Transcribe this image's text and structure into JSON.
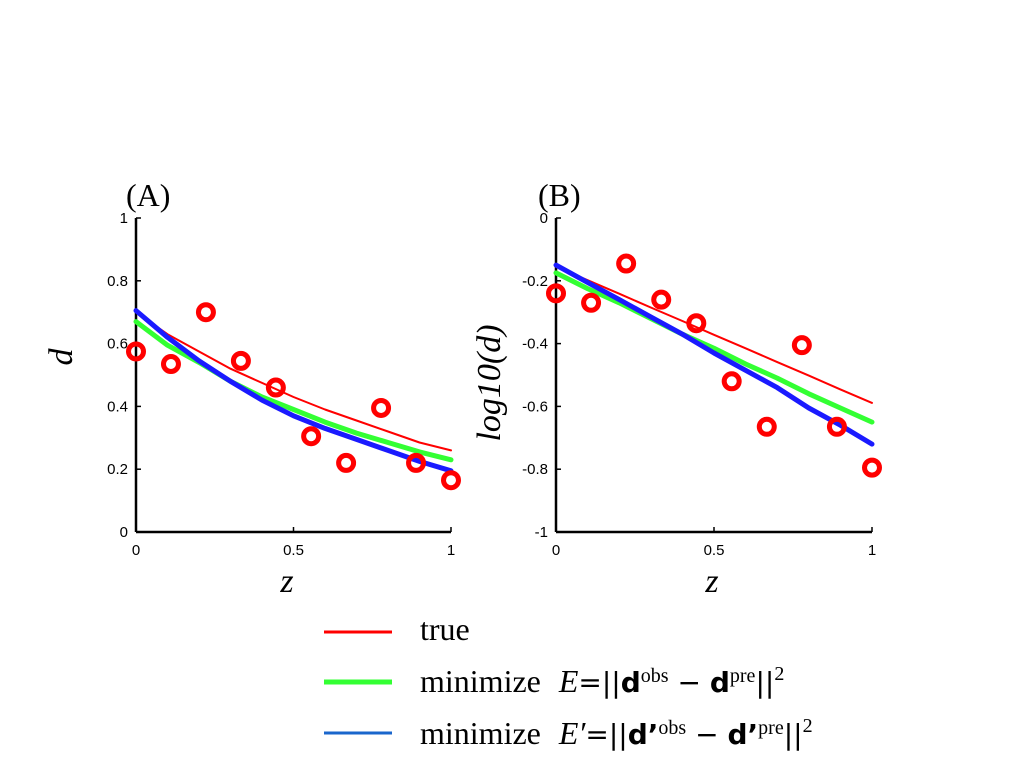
{
  "chart_data": [
    {
      "type": "line",
      "panel_label": "(A)",
      "xlabel": "z",
      "ylabel": "d",
      "xlim": [
        0,
        1
      ],
      "ylim": [
        0,
        1
      ],
      "x_ticks": [
        0,
        0.5,
        1
      ],
      "x_tick_labels": [
        "0",
        "0.5",
        "1"
      ],
      "y_ticks": [
        0,
        0.2,
        0.4,
        0.6,
        0.8,
        1
      ],
      "y_tick_labels": [
        "0",
        "0.2",
        "0.4",
        "0.6",
        "0.8",
        "1"
      ],
      "series": [
        {
          "name": "true",
          "color": "#ff0000",
          "x": [
            0,
            0.1,
            0.2,
            0.3,
            0.4,
            0.5,
            0.6,
            0.7,
            0.8,
            0.9,
            1.0
          ],
          "values": [
            0.7,
            0.63,
            0.575,
            0.52,
            0.475,
            0.43,
            0.39,
            0.355,
            0.32,
            0.285,
            0.26
          ]
        },
        {
          "name": "minimize E",
          "color": "#33ff33",
          "x": [
            0,
            0.1,
            0.2,
            0.3,
            0.4,
            0.5,
            0.6,
            0.7,
            0.8,
            0.9,
            1.0
          ],
          "values": [
            0.67,
            0.595,
            0.54,
            0.48,
            0.43,
            0.39,
            0.35,
            0.315,
            0.285,
            0.255,
            0.23
          ]
        },
        {
          "name": "minimize E'",
          "color": "#1a1aff",
          "x": [
            0,
            0.1,
            0.2,
            0.3,
            0.4,
            0.5,
            0.6,
            0.7,
            0.8,
            0.9,
            1.0
          ],
          "values": [
            0.705,
            0.62,
            0.545,
            0.48,
            0.42,
            0.37,
            0.33,
            0.295,
            0.26,
            0.225,
            0.195
          ]
        }
      ],
      "observed_points": {
        "x": [
          0,
          0.111,
          0.222,
          0.333,
          0.444,
          0.556,
          0.667,
          0.778,
          0.889,
          1.0
        ],
        "y": [
          0.575,
          0.535,
          0.7,
          0.545,
          0.46,
          0.305,
          0.22,
          0.395,
          0.22,
          0.165
        ]
      }
    },
    {
      "type": "line",
      "panel_label": "(B)",
      "xlabel": "z",
      "ylabel": "log10(d)",
      "xlim": [
        0,
        1
      ],
      "ylim": [
        -1,
        0
      ],
      "x_ticks": [
        0,
        0.5,
        1
      ],
      "x_tick_labels": [
        "0",
        "0.5",
        "1"
      ],
      "y_ticks": [
        -1,
        -0.8,
        -0.6,
        -0.4,
        -0.2,
        0
      ],
      "y_tick_labels": [
        "-1",
        "-0.8",
        "-0.6",
        "-0.4",
        "-0.2",
        "0"
      ],
      "series": [
        {
          "name": "true",
          "color": "#ff0000",
          "x": [
            0,
            0.1,
            0.2,
            0.3,
            0.4,
            0.5,
            0.6,
            0.7,
            0.8,
            0.9,
            1.0
          ],
          "values": [
            -0.155,
            -0.198,
            -0.241,
            -0.285,
            -0.328,
            -0.372,
            -0.415,
            -0.459,
            -0.502,
            -0.546,
            -0.589
          ]
        },
        {
          "name": "minimize E",
          "color": "#33ff33",
          "x": [
            0,
            0.1,
            0.2,
            0.3,
            0.4,
            0.5,
            0.6,
            0.7,
            0.8,
            0.9,
            1.0
          ],
          "values": [
            -0.175,
            -0.225,
            -0.27,
            -0.32,
            -0.37,
            -0.415,
            -0.465,
            -0.51,
            -0.56,
            -0.605,
            -0.65
          ]
        },
        {
          "name": "minimize E'",
          "color": "#1a1aff",
          "x": [
            0,
            0.1,
            0.2,
            0.3,
            0.4,
            0.5,
            0.6,
            0.7,
            0.8,
            0.9,
            1.0
          ],
          "values": [
            -0.15,
            -0.205,
            -0.26,
            -0.315,
            -0.37,
            -0.43,
            -0.485,
            -0.54,
            -0.605,
            -0.66,
            -0.72
          ]
        }
      ],
      "observed_points": {
        "x": [
          0,
          0.111,
          0.222,
          0.333,
          0.444,
          0.556,
          0.667,
          0.778,
          0.889,
          1.0
        ],
        "y": [
          -0.24,
          -0.27,
          -0.145,
          -0.26,
          -0.335,
          -0.52,
          -0.665,
          -0.405,
          -0.665,
          -0.795
        ]
      }
    }
  ],
  "legend": {
    "items": [
      {
        "label": "true",
        "color": "#ff0000"
      },
      {
        "label": "minimize",
        "color": "#33ff33",
        "E": "E",
        "eq": "=||",
        "d": "d",
        "obs": "obs",
        "minus": " − ",
        "pre": "pre",
        "close": "||",
        "sq": "2"
      },
      {
        "label": "minimize",
        "color": "#1a66cc",
        "E": "E′",
        "eq": "=||",
        "d": "d’",
        "obs": "obs",
        "minus": " − ",
        "pre": "pre",
        "close": "||",
        "sq": "2"
      }
    ]
  },
  "colors": {
    "observed_marker": "#ff0000",
    "axis": "#000000"
  }
}
